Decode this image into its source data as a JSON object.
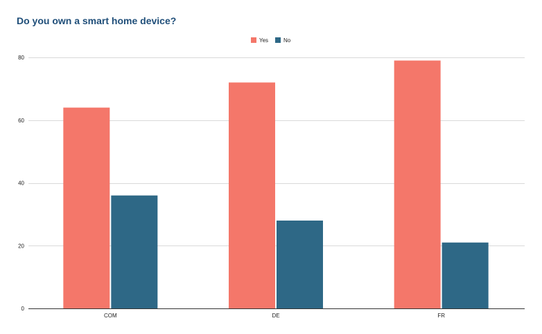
{
  "chart_data": {
    "type": "bar",
    "title": "Do you own a smart home device?",
    "categories": [
      "COM",
      "DE",
      "FR"
    ],
    "series": [
      {
        "name": "Yes",
        "color": "#f4776a",
        "values": [
          64,
          72,
          79
        ]
      },
      {
        "name": "No",
        "color": "#2e6886",
        "values": [
          36,
          28,
          21
        ]
      }
    ],
    "ylim": [
      0,
      80
    ],
    "yticks": [
      0,
      20,
      40,
      60,
      80
    ],
    "grid": true,
    "legend_position": "top-center",
    "xlabel": "",
    "ylabel": ""
  }
}
